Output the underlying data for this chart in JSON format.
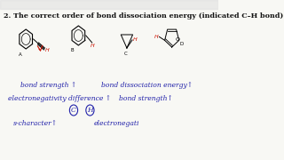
{
  "title": "2. The correct order of bond dissociation energy (indicated C–H bond):",
  "bg_color": "#f8f8f4",
  "title_color": "#111111",
  "title_fontsize": 5.8,
  "hw_color": "#2222aa",
  "red_color": "#cc1100",
  "line1_left": "bond strength ↑",
  "line1_right": "bond dissociation energy↑",
  "line2_left": "electronegativity difference ↑",
  "line2_right": "bond strength↑",
  "circle_c": "C",
  "circle_h": "H",
  "line3_left": "s-character↑",
  "line3_right": "electronegati",
  "label_a": "A",
  "label_b": "B",
  "label_c": "C",
  "label_d": "D"
}
